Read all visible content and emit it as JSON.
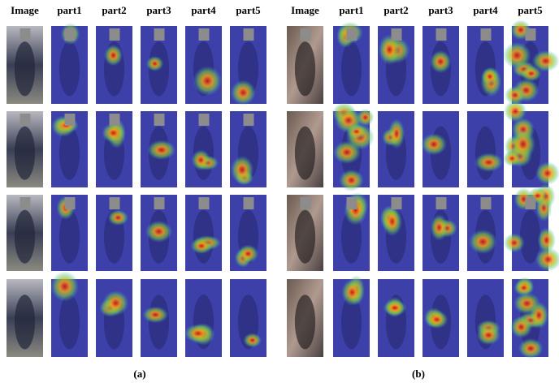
{
  "panels": [
    {
      "headers": [
        "Image",
        "part1",
        "part2",
        "part3",
        "part4",
        "part5"
      ],
      "caption": "(a)"
    },
    {
      "headers": [
        "Image",
        "part1",
        "part2",
        "part3",
        "part4",
        "part5"
      ],
      "caption": "(b)"
    }
  ]
}
